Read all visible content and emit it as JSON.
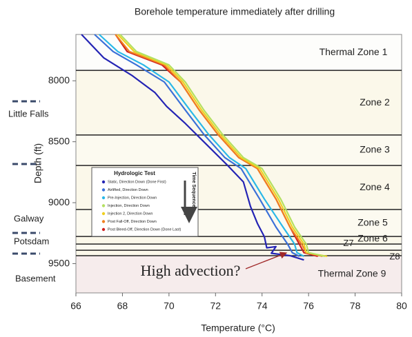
{
  "chart_data": {
    "type": "line",
    "title": "Borehole temperature immediately after drilling",
    "x_label": "Temperature (°C)",
    "y_label": "Depth (ft)",
    "xlim": [
      66,
      80
    ],
    "xticks": [
      66,
      68,
      70,
      72,
      74,
      76,
      78,
      80
    ],
    "ylim": [
      7620,
      9740
    ],
    "y_inverted": true,
    "yticks": [
      8000,
      8500,
      9000,
      9500
    ],
    "zone_boundaries": [
      7915,
      8445,
      8695,
      9056,
      9277,
      9339,
      9390,
      9435
    ],
    "zones": [
      "Thermal Zone 1",
      "Zone 2",
      "Zone 3",
      "Zone 4",
      "Zone 5",
      "Zone 6",
      "Z7",
      "Z8",
      "Thermal Zone 9"
    ],
    "formations": [
      "Little Falls",
      "Galway",
      "Potsdam",
      "Basement"
    ],
    "annotation": "High advection?",
    "legend_title": "Hydrologic Test",
    "sequence_label": "Time Sequence",
    "series": [
      {
        "name": "Static, Direction Down (Done First)",
        "color": "#2424b4",
        "x": [
          66.24,
          67.2,
          68.4,
          69.4,
          69.9,
          70.7,
          71.6,
          72.5,
          73.2,
          73.5,
          73.8,
          74.1,
          74.2,
          74.6,
          74.4,
          75.2,
          75.8
        ],
        "values": [
          7620,
          7813,
          7955,
          8097,
          8210,
          8350,
          8520,
          8690,
          8830,
          9030,
          9170,
          9280,
          9370,
          9360,
          9415,
          9435,
          9470
        ]
      },
      {
        "name": "Airlifted, Direction Down",
        "color": "#3a70d8",
        "x": [
          66.8,
          67.6,
          68.6,
          69.8,
          70.7,
          71.5,
          72.4,
          73.1,
          73.9,
          74.6,
          75.1,
          75.3,
          75.6
        ],
        "values": [
          7620,
          7760,
          7870,
          8010,
          8240,
          8440,
          8630,
          8720,
          8970,
          9200,
          9340,
          9410,
          9440
        ]
      },
      {
        "name": "Pre-Injection, Direction Down",
        "color": "#2ab8e8",
        "x": [
          67.0,
          67.8,
          68.9,
          70.0,
          70.9,
          71.7,
          72.6,
          73.3,
          74.1,
          74.9,
          75.4,
          75.5,
          75.8
        ],
        "values": [
          7620,
          7760,
          7870,
          8010,
          8240,
          8440,
          8630,
          8720,
          8970,
          9200,
          9340,
          9410,
          9440
        ]
      },
      {
        "name": "Injection, Direction Down",
        "color": "#b4e060",
        "x": [
          67.9,
          68.6,
          70.0,
          70.7,
          71.5,
          72.3,
          73.2,
          74.0,
          74.8,
          75.4,
          75.9,
          76.0,
          76.7
        ],
        "values": [
          7620,
          7760,
          7870,
          8010,
          8240,
          8440,
          8630,
          8720,
          8970,
          9200,
          9340,
          9410,
          9440
        ]
      },
      {
        "name": "Injection 2, Direction Down",
        "color": "#f0d020",
        "x": [
          67.8,
          68.5,
          69.9,
          70.6,
          71.4,
          72.2,
          73.1,
          73.9,
          74.7,
          75.3,
          75.8,
          75.9,
          76.8
        ],
        "values": [
          7620,
          7760,
          7870,
          8010,
          8240,
          8440,
          8630,
          8720,
          8970,
          9200,
          9340,
          9410,
          9440
        ]
      },
      {
        "name": "Post Fall-Off, Direction Down",
        "color": "#f08020",
        "x": [
          67.7,
          68.3,
          69.8,
          70.5,
          71.3,
          72.1,
          73.0,
          73.8,
          74.6,
          75.2,
          75.7,
          75.9,
          76.6
        ],
        "values": [
          7620,
          7760,
          7870,
          8010,
          8240,
          8440,
          8630,
          8720,
          8970,
          9200,
          9340,
          9410,
          9440
        ]
      },
      {
        "name": "Post Bleed-Off, Direction Down (Done Last)",
        "color": "#d02020",
        "x": [
          67.7,
          68.2,
          69.7,
          70.5,
          71.3,
          72.1,
          73.0,
          73.8,
          74.6,
          75.2,
          75.6,
          75.8,
          76.4
        ],
        "values": [
          7620,
          7760,
          7870,
          8010,
          8240,
          8440,
          8630,
          8720,
          8970,
          9200,
          9340,
          9410,
          9440
        ]
      }
    ]
  }
}
